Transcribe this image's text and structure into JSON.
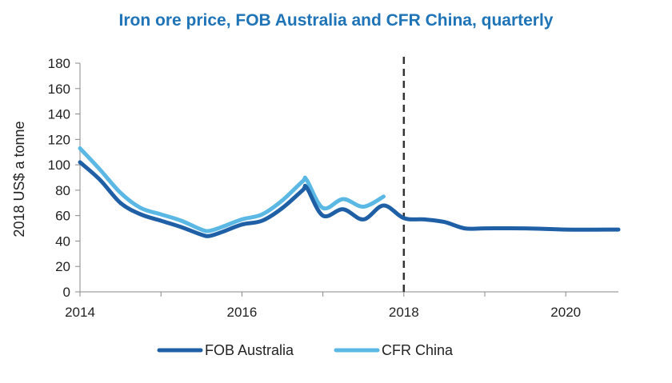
{
  "chart_data": {
    "type": "line",
    "title": "Iron ore price, FOB Australia and CFR China, quarterly",
    "xlabel": "",
    "ylabel": "2018 US$ a tonne",
    "xlim": [
      2014,
      2020.65
    ],
    "ylim": [
      0,
      180
    ],
    "yticks": [
      0,
      20,
      40,
      60,
      80,
      100,
      120,
      140,
      160,
      180
    ],
    "xticks": [
      {
        "value": 2014,
        "label": "2014"
      },
      {
        "value": 2016,
        "label": "2016"
      },
      {
        "value": 2018,
        "label": "2018"
      },
      {
        "value": 2020,
        "label": "2020"
      }
    ],
    "vline": {
      "x": 2018,
      "style": "dashed"
    },
    "legend_position": "bottom-center",
    "series": [
      {
        "name": "FOB Australia",
        "color": "#1f5fa6",
        "x": [
          2014,
          2014.25,
          2014.5,
          2014.75,
          2015,
          2015.25,
          2015.5,
          2015.6,
          2015.75,
          2016,
          2016.25,
          2016.5,
          2016.75,
          2016.8,
          2017,
          2017.25,
          2017.5,
          2017.75,
          2018,
          2018.25,
          2018.5,
          2018.75,
          2019,
          2019.5,
          2020,
          2020.65
        ],
        "values": [
          102,
          88,
          70,
          61,
          56,
          51,
          45,
          44,
          47,
          53,
          56,
          66,
          80,
          82,
          60,
          65,
          57,
          68,
          58,
          57,
          55,
          50,
          50,
          50,
          49,
          49
        ]
      },
      {
        "name": "CFR China",
        "color": "#5bb8e4",
        "x": [
          2014,
          2014.25,
          2014.5,
          2014.75,
          2015,
          2015.25,
          2015.5,
          2015.6,
          2015.75,
          2016,
          2016.25,
          2016.5,
          2016.75,
          2016.8,
          2017,
          2017.25,
          2017.5,
          2017.75
        ],
        "values": [
          113,
          96,
          78,
          66,
          61,
          56,
          49,
          48,
          51,
          57,
          61,
          72,
          87,
          88,
          66,
          73,
          67,
          75
        ]
      }
    ]
  }
}
